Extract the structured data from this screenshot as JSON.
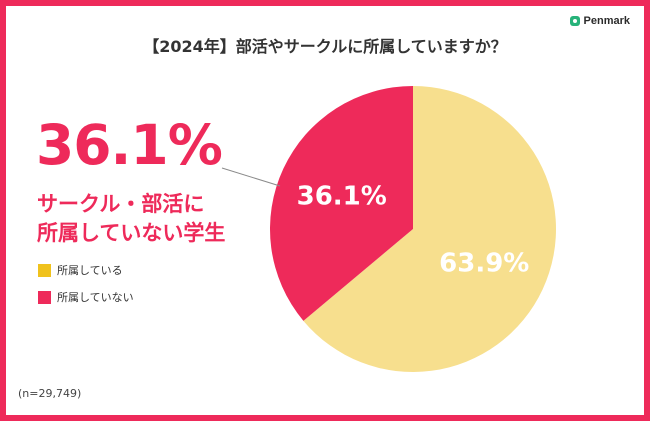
{
  "brand": {
    "name": "Penmark",
    "icon": "penmark-logo-icon",
    "color": "#27b37a"
  },
  "colors": {
    "frame": "#ee2a5a",
    "accent": "#ee2a5a"
  },
  "highlight": {
    "value": "36.1%",
    "line1": "サークル・部活に",
    "line2": "所属していない学生"
  },
  "note": "(n=29,749)",
  "chart_data": {
    "type": "pie",
    "title": "【2024年】部活やサークルに所属していますか？",
    "slices": [
      {
        "label": "所属している",
        "value": 63.9,
        "value_label": "63.9%",
        "color": "#f7df8e",
        "legend_color": "#f0c21d"
      },
      {
        "label": "所属していない",
        "value": 36.1,
        "value_label": "36.1%",
        "color": "#ee2a5a",
        "legend_color": "#ee2a5a"
      }
    ],
    "start": "12 o'clock, clockwise",
    "legend_position": "left"
  }
}
